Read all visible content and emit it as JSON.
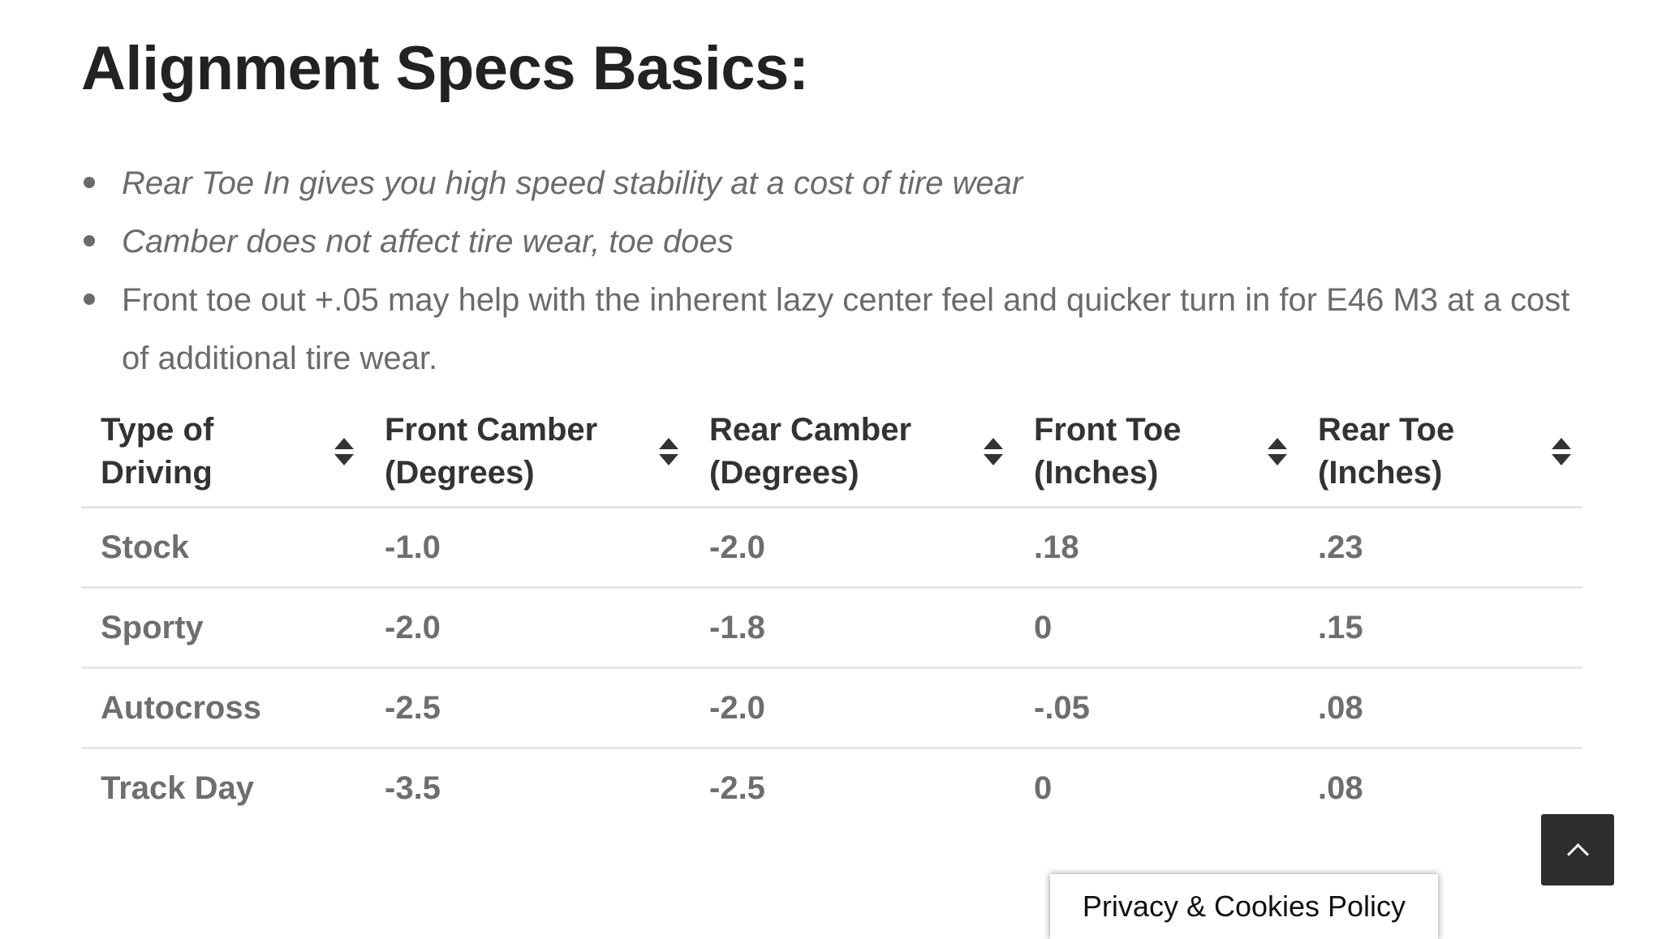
{
  "title": "Alignment Specs Basics:",
  "bullets": [
    {
      "text": "Rear Toe In gives you high speed stability at a cost of tire wear",
      "italic": true
    },
    {
      "text": "Camber does not affect tire wear, toe does",
      "italic": true
    },
    {
      "text": "Front toe out +.05 may help with the inherent lazy center feel and quicker turn in for E46 M3 at a cost of additional tire wear.",
      "italic": false
    }
  ],
  "table": {
    "headers": [
      "Type of Driving",
      "Front Camber (Degrees)",
      "Rear Camber (Degrees)",
      "Front Toe (Inches)",
      "Rear Toe (Inches)"
    ],
    "rows": [
      [
        "Stock",
        "-1.0",
        "-2.0",
        ".18",
        ".23"
      ],
      [
        "Sporty",
        "-2.0",
        "-1.8",
        "0",
        ".15"
      ],
      [
        "Autocross",
        "-2.5",
        "-2.0",
        "-.05",
        ".08"
      ],
      [
        "Track Day",
        "-3.5",
        "-2.5",
        "0",
        ".08"
      ]
    ]
  },
  "icons": {
    "sort": "sort-icon",
    "scroll_top": "chevron-up-icon"
  },
  "privacy_label": "Privacy & Cookies Policy"
}
